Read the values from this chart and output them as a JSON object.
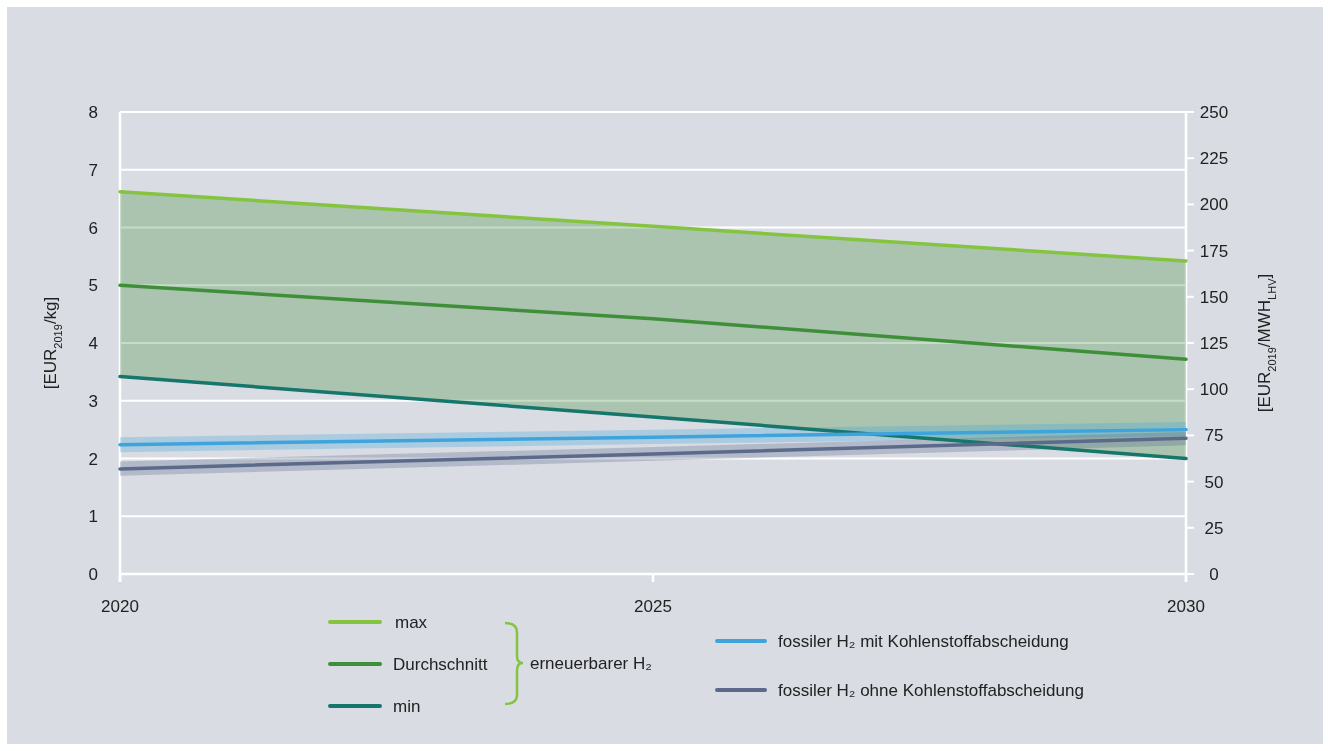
{
  "chart_data": {
    "type": "line",
    "ylabel": "[EUR$_{2019}$/kg]",
    "y2label": "[EUR$_{2019}$/MWH$_{LHV}$]",
    "x": [
      2020,
      2025,
      2030
    ],
    "xlim": [
      2020,
      2030
    ],
    "xticks": [
      2020,
      2025,
      2030
    ],
    "ylim": [
      0,
      8
    ],
    "yticks": [
      0,
      1,
      2,
      3,
      4,
      5,
      6,
      7,
      8
    ],
    "y2lim": [
      0,
      250
    ],
    "y2ticks": [
      0,
      25,
      50,
      75,
      100,
      125,
      150,
      175,
      200,
      225,
      250
    ],
    "grid": "y",
    "legend": "bottom",
    "line_style": "solid",
    "marker": "none",
    "annotations": [
      "erneuerbarer H₂"
    ],
    "series": [
      {
        "name": "max",
        "color": "#84c441",
        "values": [
          6.62,
          6.02,
          5.42
        ]
      },
      {
        "name": "Durchschnitt",
        "color": "#3f8f3a",
        "values": [
          5.0,
          4.42,
          3.72
        ],
        "lower": [
          3.42,
          2.72,
          2.0
        ],
        "upper": [
          6.62,
          6.02,
          5.42
        ]
      },
      {
        "name": "min",
        "color": "#17766b",
        "values": [
          3.42,
          2.72,
          2.0
        ]
      },
      {
        "name": "fossiler H₂ mit Kohlenstoffabscheidung",
        "color": "#3fa4dc",
        "values": [
          2.24,
          2.37,
          2.5
        ],
        "lower": [
          2.11,
          2.25,
          2.39
        ],
        "upper": [
          2.37,
          2.5,
          2.63
        ]
      },
      {
        "name": "fossiler H₂ ohne Kohlenstoffabscheidung",
        "color": "#5b6a8a",
        "values": [
          1.82,
          2.08,
          2.35
        ],
        "lower": [
          1.7,
          1.96,
          2.23
        ],
        "upper": [
          1.95,
          2.2,
          2.46
        ]
      }
    ]
  }
}
